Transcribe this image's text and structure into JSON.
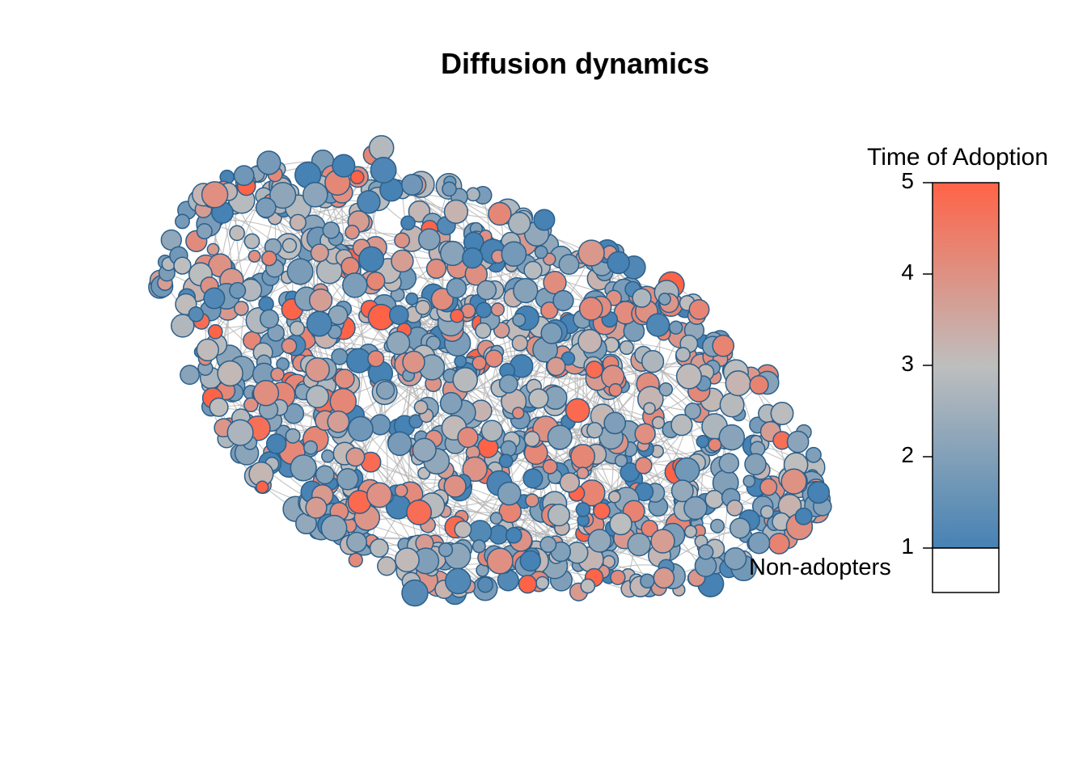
{
  "title": "Diffusion dynamics",
  "chart_data": {
    "type": "network",
    "title": "Diffusion dynamics",
    "legend": {
      "title": "Time of Adoption",
      "placement": "right",
      "ticks": [
        "5",
        "4",
        "3",
        "2",
        "1"
      ],
      "tick_values": [
        5,
        4,
        3,
        2,
        1
      ],
      "range": [
        1,
        5
      ],
      "non_adopters_label": "Non-adopters",
      "non_adopters_color": "#ffffff",
      "gradient_colors": {
        "low": "#4682b4",
        "mid": "#bebebe",
        "high": "#ff6347"
      }
    },
    "node_border_color": "#2b5f8a",
    "edge_color": "#b3b3b3",
    "node_count_estimate": 1000
  }
}
